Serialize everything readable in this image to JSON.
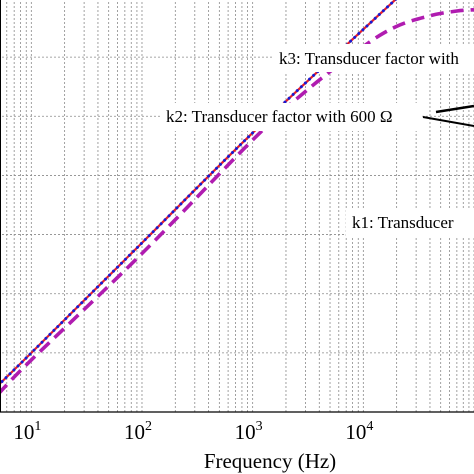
{
  "chart_data": {
    "type": "line",
    "title": "",
    "xlabel": "Frequency (Hz)",
    "ylabel": "",
    "xscale": "log",
    "xlim": [
      5,
      100000
    ],
    "ylim": [
      0,
      7
    ],
    "grid": true,
    "grid_style": "dotted",
    "x_ticks": [
      {
        "value": 10,
        "base": "10",
        "exp": "1"
      },
      {
        "value": 100,
        "base": "10",
        "exp": "2"
      },
      {
        "value": 1000,
        "base": "10",
        "exp": "3"
      },
      {
        "value": 10000,
        "base": "10",
        "exp": "4"
      }
    ],
    "series": [
      {
        "key": "k1",
        "color": "#b01cb0",
        "dash": "dashed",
        "x": [
          5,
          10,
          100,
          1000,
          3000,
          10000,
          20000,
          40000,
          70000,
          100000
        ],
        "y": [
          0.3,
          0.88,
          2.68,
          4.6,
          5.42,
          6.18,
          6.52,
          6.7,
          6.78,
          6.8
        ]
      },
      {
        "key": "k2",
        "color": "#e8202a",
        "dash": "solid",
        "x": [
          5,
          10,
          100,
          1000,
          10000,
          100000
        ],
        "y": [
          0.45,
          1.0,
          2.86,
          4.72,
          6.47,
          8.2
        ]
      },
      {
        "key": "k3",
        "color": "#1a1ad0",
        "dash": "dotted",
        "x": [
          5,
          10,
          100,
          1000,
          10000,
          100000
        ],
        "y": [
          0.45,
          1.0,
          2.86,
          4.72,
          6.47,
          8.2
        ]
      }
    ],
    "annotations": [
      {
        "key": "k3",
        "text": "k3: Transducer factor with"
      },
      {
        "key": "k2",
        "text": "k2: Transducer factor with 600 Ω"
      },
      {
        "key": "k1",
        "text": "k1: Transducer"
      }
    ]
  }
}
